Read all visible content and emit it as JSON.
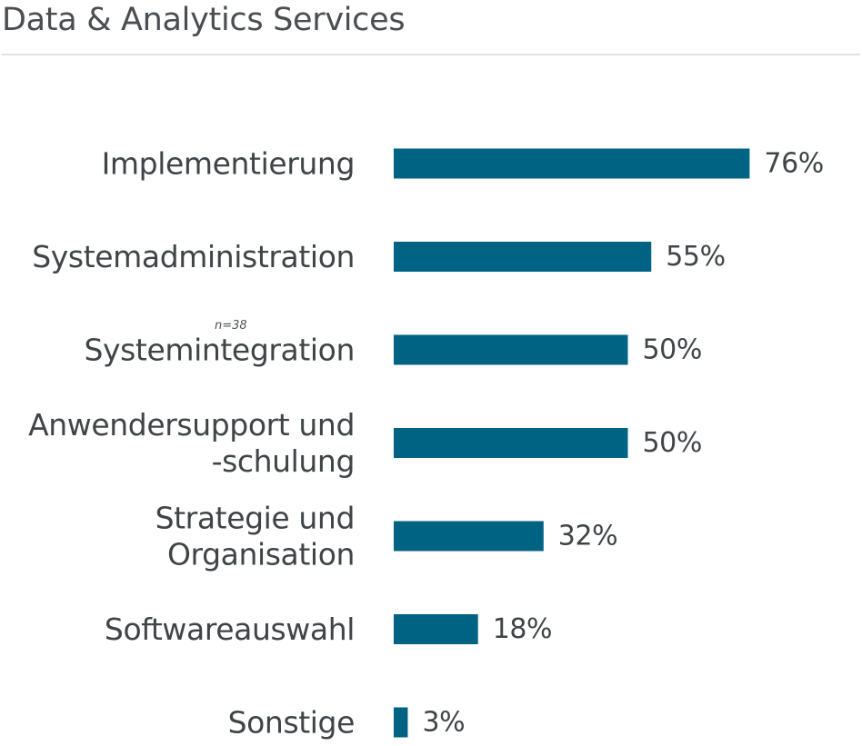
{
  "page": {
    "title": "Data & Analytics Services",
    "sample_note": "n=38"
  },
  "colors": {
    "bar": "#006383",
    "text": "#3f4447",
    "rule": "#e2e2e2"
  },
  "chart_data": {
    "type": "bar",
    "orientation": "horizontal",
    "title": "Data & Analytics Services",
    "categories": [
      [
        "Implementierung"
      ],
      [
        "Systemadministration"
      ],
      [
        "Systemintegration"
      ],
      [
        "Anwendersupport und",
        "-schulung"
      ],
      [
        "Strategie und",
        "Organisation"
      ],
      [
        "Softwareauswahl"
      ],
      [
        "Sonstige"
      ]
    ],
    "values": [
      76,
      55,
      50,
      50,
      32,
      18,
      3
    ],
    "value_labels": [
      "76%",
      "55%",
      "50%",
      "50%",
      "32%",
      "18%",
      "3%"
    ],
    "unit": "%",
    "xlim": [
      0,
      100
    ],
    "grid": false,
    "legend": "none"
  }
}
